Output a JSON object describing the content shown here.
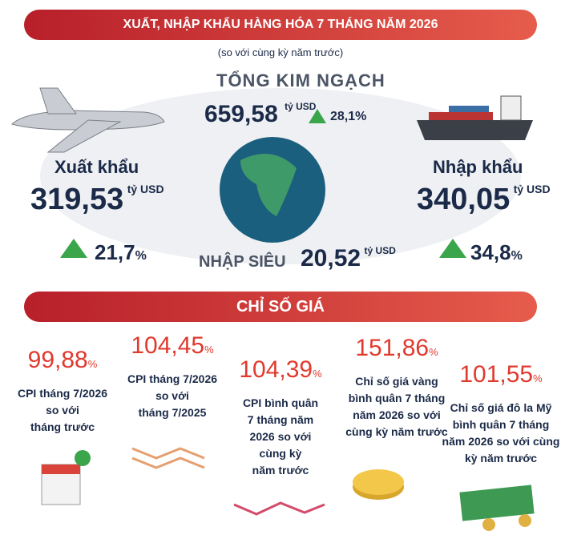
{
  "header": {
    "title": "XUẤT, NHẬP KHẨU HÀNG HÓA 7 THÁNG NĂM 2026",
    "subtitle": "(so với cùng kỳ năm trước)"
  },
  "total": {
    "label": "TỔNG KIM NGẠCH",
    "value": "659,58",
    "unit": "tỷ USD",
    "change": "28,1%"
  },
  "export": {
    "label": "Xuất khẩu",
    "value": "319,53",
    "unit": "tỷ USD",
    "change": "21,7",
    "change_unit": "%"
  },
  "import": {
    "label": "Nhập khẩu",
    "value": "340,05",
    "unit": "tỷ USD",
    "change": "34,8",
    "change_unit": "%"
  },
  "deficit": {
    "label": "NHẬP SIÊU",
    "value": "20,52",
    "unit": "tỷ USD"
  },
  "price_section": {
    "title": "CHỈ SỐ GIÁ"
  },
  "cards": [
    {
      "value": "99,88",
      "unit": "%",
      "lines": [
        "CPI tháng 7/2026",
        "so với",
        "tháng trước"
      ]
    },
    {
      "value": "104,45",
      "unit": "%",
      "lines": [
        "CPI tháng 7/2026",
        "so với",
        "tháng 7/2025"
      ]
    },
    {
      "value": "104,39",
      "unit": "%",
      "lines": [
        "CPI bình quân",
        "7 tháng năm",
        "2026 so với",
        "cùng kỳ",
        "năm trước"
      ]
    },
    {
      "value": "151,86",
      "unit": "%",
      "lines": [
        "Chỉ số giá vàng",
        "bình quân 7 tháng",
        "năm 2026 so với",
        "cùng kỳ năm trước"
      ]
    },
    {
      "value": "101,55",
      "unit": "%",
      "lines": [
        "Chỉ số giá đô la Mỹ",
        "bình quân 7 tháng",
        "năm 2026 so với cùng",
        "kỳ năm trước"
      ]
    }
  ]
}
